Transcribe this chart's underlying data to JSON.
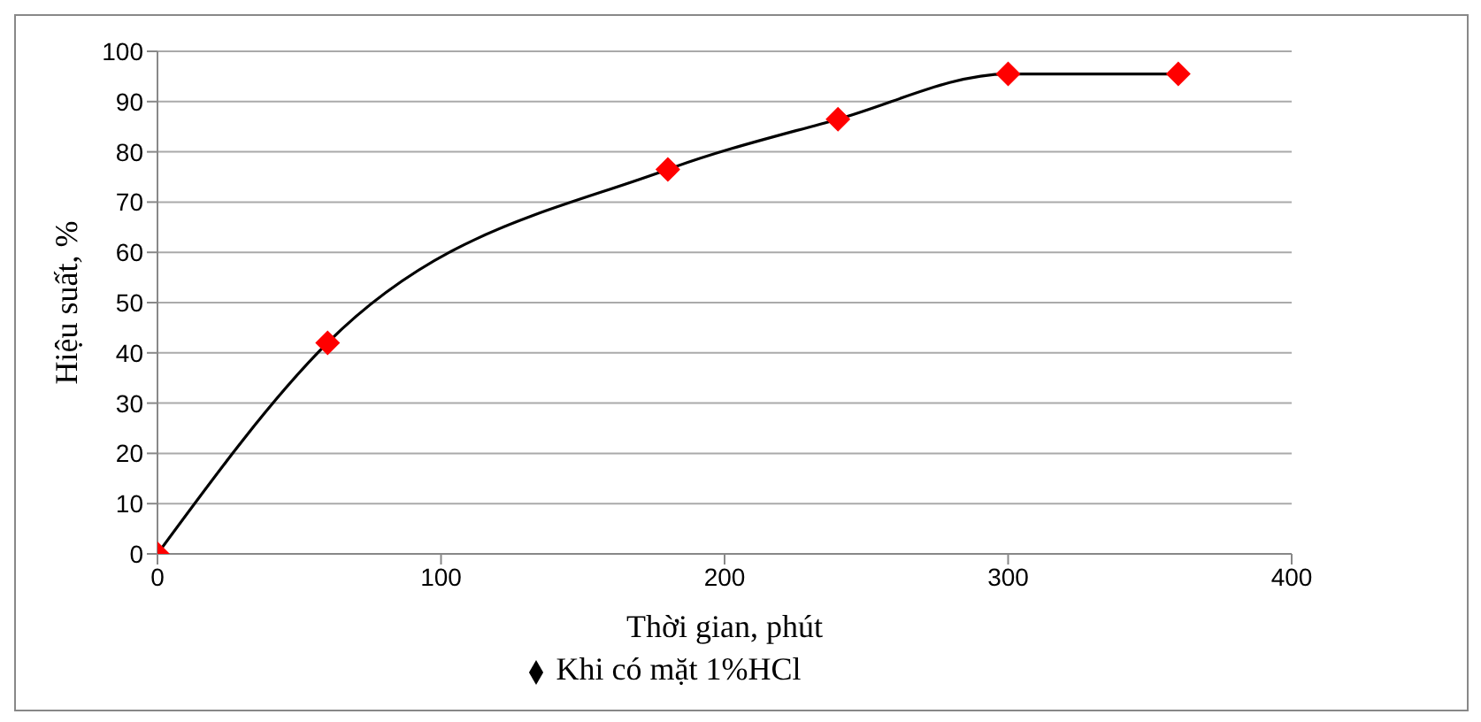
{
  "chart_data": {
    "type": "line",
    "xlabel": "Thời gian, phút",
    "ylabel": "Hiệu suất, %",
    "x": [
      0,
      60,
      180,
      240,
      300,
      360
    ],
    "series": [
      {
        "name": "Khi có mặt 1%HCl",
        "color": "#000000",
        "colors": [
          "#ff0000",
          "#ff0000",
          "#ff0000",
          "#ff0000",
          "#ff0000",
          "#ff0000"
        ],
        "values": [
          0,
          42,
          76.5,
          86.5,
          95.5,
          95.5
        ]
      }
    ],
    "xlim": [
      0,
      400
    ],
    "xticks": [
      0,
      100,
      200,
      300,
      400
    ],
    "ylim": [
      0,
      100
    ],
    "yticks": [
      0,
      10,
      20,
      30,
      40,
      50,
      60,
      70,
      80,
      90,
      100
    ],
    "grid": "y",
    "legend": "bottom",
    "marker": "diamond",
    "line_style": "solid"
  }
}
